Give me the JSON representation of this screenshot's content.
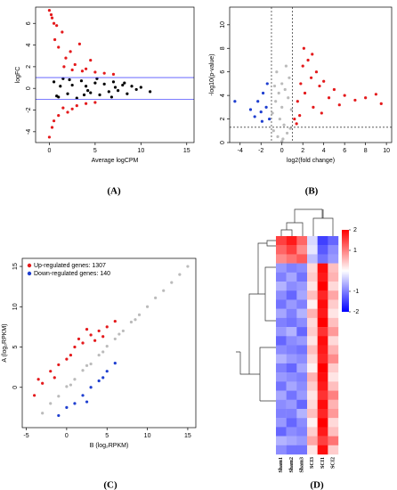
{
  "chart_data": [
    {
      "type": "scatter",
      "label": "(A)",
      "xlabel": "Average logCPM",
      "ylabel": "logFC",
      "xlim": [
        -1.5,
        15.8
      ],
      "ylim": [
        -5,
        7.5
      ],
      "xticks": [
        0,
        5,
        10,
        15
      ],
      "yticks": [
        -4,
        -2,
        0,
        2,
        4,
        6
      ],
      "hlines": [
        1,
        -1
      ],
      "ref_line_color": "#5050ff",
      "ref_line_style": "solid",
      "series": [
        {
          "color": "#000000",
          "x": [
            0.5,
            1,
            1.5,
            2,
            2.5,
            3,
            3.5,
            4,
            4.5,
            5,
            5.5,
            6,
            6.5,
            7,
            7.5,
            8,
            8.5,
            9,
            9.5,
            10,
            0.8,
            2.2,
            3.8,
            5.2,
            6.8,
            8.2,
            1.2,
            4.2,
            7.2,
            11
          ],
          "values": [
            0.6,
            -0.8,
            0.9,
            -0.5,
            0.3,
            -0.9,
            0.7,
            0.2,
            -0.4,
            0.5,
            -0.6,
            0.4,
            -0.3,
            0.6,
            -0.2,
            0.3,
            -0.5,
            0.2,
            -0.1,
            0.1,
            -0.7,
            0.8,
            -0.6,
            0.9,
            -0.8,
            0.5,
            0.2,
            -0.2,
            0.1,
            -0.3
          ]
        },
        {
          "color": "#e41a1c",
          "x": [
            0,
            0.3,
            0.6,
            1,
            1.4,
            1.8,
            2.3,
            2.8,
            3.3,
            4,
            4.5,
            5,
            6,
            7,
            0.2,
            0.8,
            1.6,
            2.5,
            3.6,
            0.5
          ],
          "values": [
            7.2,
            6.5,
            4.5,
            3.8,
            5.2,
            2.8,
            3.4,
            2.2,
            4.1,
            1.8,
            2.6,
            1.5,
            1.4,
            1.3,
            6.8,
            5.8,
            2,
            1.7,
            1.6,
            6
          ]
        },
        {
          "color": "#e41a1c",
          "x": [
            0,
            0.5,
            1,
            1.5,
            2,
            3,
            4,
            5,
            0.3,
            2.5
          ],
          "values": [
            -4.5,
            -3,
            -2.5,
            -1.8,
            -2.2,
            -1.6,
            -1.4,
            -1.3,
            -3.6,
            -1.9
          ]
        }
      ]
    },
    {
      "type": "scatter",
      "label": "(B)",
      "xlabel": "log2(fold change)",
      "ylabel": "-log10(p-value)",
      "xlim": [
        -5,
        10.5
      ],
      "ylim": [
        0,
        11.5
      ],
      "xticks": [
        -4,
        -2,
        0,
        2,
        4,
        6,
        8,
        10
      ],
      "yticks": [
        0,
        2,
        4,
        6,
        8,
        10
      ],
      "vlines": [
        -1,
        1
      ],
      "hlines": [
        1.3
      ],
      "ref_line_color": "#444444",
      "ref_line_style": "dashed",
      "series": [
        {
          "color": "#bbbbbb",
          "x": [
            -0.9,
            -0.6,
            -0.3,
            0,
            0.3,
            0.6,
            0.9,
            -0.8,
            -0.4,
            0.1,
            0.5,
            0.8,
            -0.2,
            0.2,
            -0.5,
            0.4,
            0,
            -0.7,
            0.7,
            0
          ],
          "values": [
            2.5,
            3.5,
            4.2,
            5,
            4.5,
            3.8,
            2.8,
            1,
            0.5,
            0.3,
            0.8,
            1.2,
            2,
            1.5,
            6,
            6.5,
            0.1,
            4.8,
            5.5,
            3
          ]
        },
        {
          "color": "#e41a1c",
          "x": [
            1.2,
            1.5,
            1.8,
            2,
            2.2,
            2.5,
            2.8,
            3,
            3.3,
            3.6,
            4,
            4.5,
            5,
            5.5,
            6,
            7,
            8,
            9,
            9.5,
            1.4,
            2.1,
            2.9,
            3.8,
            1.7
          ],
          "values": [
            2,
            3.5,
            5,
            6.5,
            4.2,
            7,
            5.5,
            3,
            6,
            4.8,
            5.2,
            3.8,
            4.5,
            3.2,
            4,
            3.6,
            3.8,
            4.1,
            3.3,
            1.6,
            8,
            7.5,
            2.5,
            2.3
          ]
        },
        {
          "color": "#1f3fd0",
          "x": [
            -1.2,
            -1.5,
            -1.8,
            -2,
            -2.3,
            -2.6,
            -3,
            -1.4,
            -1.9,
            -4.5
          ],
          "values": [
            2,
            3,
            4.2,
            2.6,
            3.5,
            2.2,
            2.8,
            5,
            1.8,
            3.5
          ]
        }
      ]
    },
    {
      "type": "scatter",
      "label": "(C)",
      "xlabel": "B (log₂RPKM)",
      "ylabel": "A (log₂RPKM)",
      "xlim": [
        -5.5,
        16
      ],
      "ylim": [
        -5,
        16
      ],
      "xticks": [
        -5,
        0,
        5,
        10,
        15
      ],
      "yticks": [
        0,
        5,
        10,
        15
      ],
      "legend": "upper left",
      "series": [
        {
          "color": "#bbbbbb",
          "x": [
            -3,
            -2,
            -1,
            0,
            1,
            2,
            3,
            4,
            5,
            6,
            7,
            8,
            9,
            10,
            11,
            12,
            13,
            14,
            15,
            0.5,
            2.5,
            4.5,
            6.5,
            8.5
          ],
          "values": [
            -3.2,
            -2,
            -1.1,
            0.1,
            1,
            2.1,
            2.9,
            4,
            5.1,
            6,
            7,
            8.1,
            9,
            10,
            11.1,
            12,
            13,
            14,
            15,
            0.3,
            2.7,
            4.4,
            6.6,
            8.4
          ]
        },
        {
          "name": "Up-regulated genes: 1307",
          "color": "#e41a1c",
          "x": [
            -4,
            -3,
            -2,
            -1,
            0,
            1,
            2,
            3,
            4,
            5,
            6,
            -1.5,
            0.5,
            2.5,
            3.5,
            -3.5,
            1.5,
            4.5
          ],
          "values": [
            -1,
            0.5,
            2,
            2.8,
            3.5,
            5,
            5.5,
            6.5,
            7,
            7.5,
            8.2,
            1.2,
            4,
            7.2,
            5.8,
            1,
            6,
            6.3
          ]
        },
        {
          "name": "Down-regulated genes: 140",
          "color": "#1f3fd0",
          "x": [
            -1,
            0,
            1,
            2,
            3,
            4,
            5,
            6,
            2.5,
            4.5
          ],
          "values": [
            -3.5,
            -2.5,
            -2,
            -1,
            0,
            0.8,
            2,
            3,
            -1.8,
            1.2
          ]
        }
      ]
    },
    {
      "type": "heatmap",
      "label": "(D)",
      "columns": [
        "Sham1",
        "Sham2",
        "Sham3",
        "SCI3",
        "SCI1",
        "SCI2"
      ],
      "clim": [
        -2,
        2
      ],
      "cticks": [
        -2,
        -1,
        1,
        2
      ],
      "low_color": "#0000ff",
      "mid_color": "#ffffff",
      "high_color": "#ff0000",
      "values": [
        [
          1.5,
          1.8,
          1.2,
          -0.3,
          -1.5,
          -1.2
        ],
        [
          1.2,
          1.5,
          0.9,
          -0.2,
          -1.3,
          -0.9
        ],
        [
          0.9,
          1.1,
          1.3,
          -0.5,
          -1.1,
          -0.8
        ],
        [
          -0.8,
          -1,
          -0.9,
          0.3,
          1.9,
          0.5
        ],
        [
          -1,
          -0.7,
          -1.1,
          0.4,
          1.8,
          0.6
        ],
        [
          -0.6,
          -0.9,
          -0.8,
          0.2,
          2,
          0.3
        ],
        [
          -0.9,
          -1.2,
          -0.7,
          0.5,
          1.7,
          0.7
        ],
        [
          -1.1,
          -0.8,
          -1,
          0.1,
          1.9,
          0.4
        ],
        [
          -0.7,
          -1,
          -0.6,
          0.6,
          1.8,
          0.2
        ],
        [
          -1,
          -1.1,
          -0.9,
          0.3,
          2,
          0.5
        ],
        [
          -0.8,
          -0.6,
          -1.2,
          0.4,
          1.6,
          0.8
        ],
        [
          -1.2,
          -0.9,
          -0.8,
          0.2,
          1.9,
          0.3
        ],
        [
          -0.9,
          -1,
          -1.1,
          0.5,
          1.8,
          0.6
        ],
        [
          -0.6,
          -0.8,
          -0.9,
          0.3,
          1.7,
          0.9
        ],
        [
          -1,
          -1.2,
          -0.7,
          0.1,
          2,
          0.4
        ],
        [
          -0.8,
          -0.9,
          -1,
          0.6,
          1.9,
          0.2
        ],
        [
          -1.1,
          -0.7,
          -0.9,
          0.4,
          1.8,
          0.5
        ],
        [
          -0.7,
          -1.1,
          -0.8,
          0.2,
          1.6,
          1
        ],
        [
          -0.9,
          -0.8,
          -1.2,
          0.3,
          1.9,
          0.6
        ],
        [
          -1,
          -1,
          -0.6,
          0.5,
          1.7,
          0.8
        ],
        [
          -0.8,
          -1.2,
          -0.9,
          0.1,
          2,
          0.3
        ],
        [
          -1.2,
          -0.9,
          -1,
          0.4,
          1.8,
          0.5
        ],
        [
          -0.6,
          -0.7,
          -0.8,
          0.7,
          1.5,
          1.1
        ],
        [
          -0.9,
          -1.1,
          -1.1,
          0.2,
          1.9,
          0.4
        ]
      ]
    }
  ]
}
